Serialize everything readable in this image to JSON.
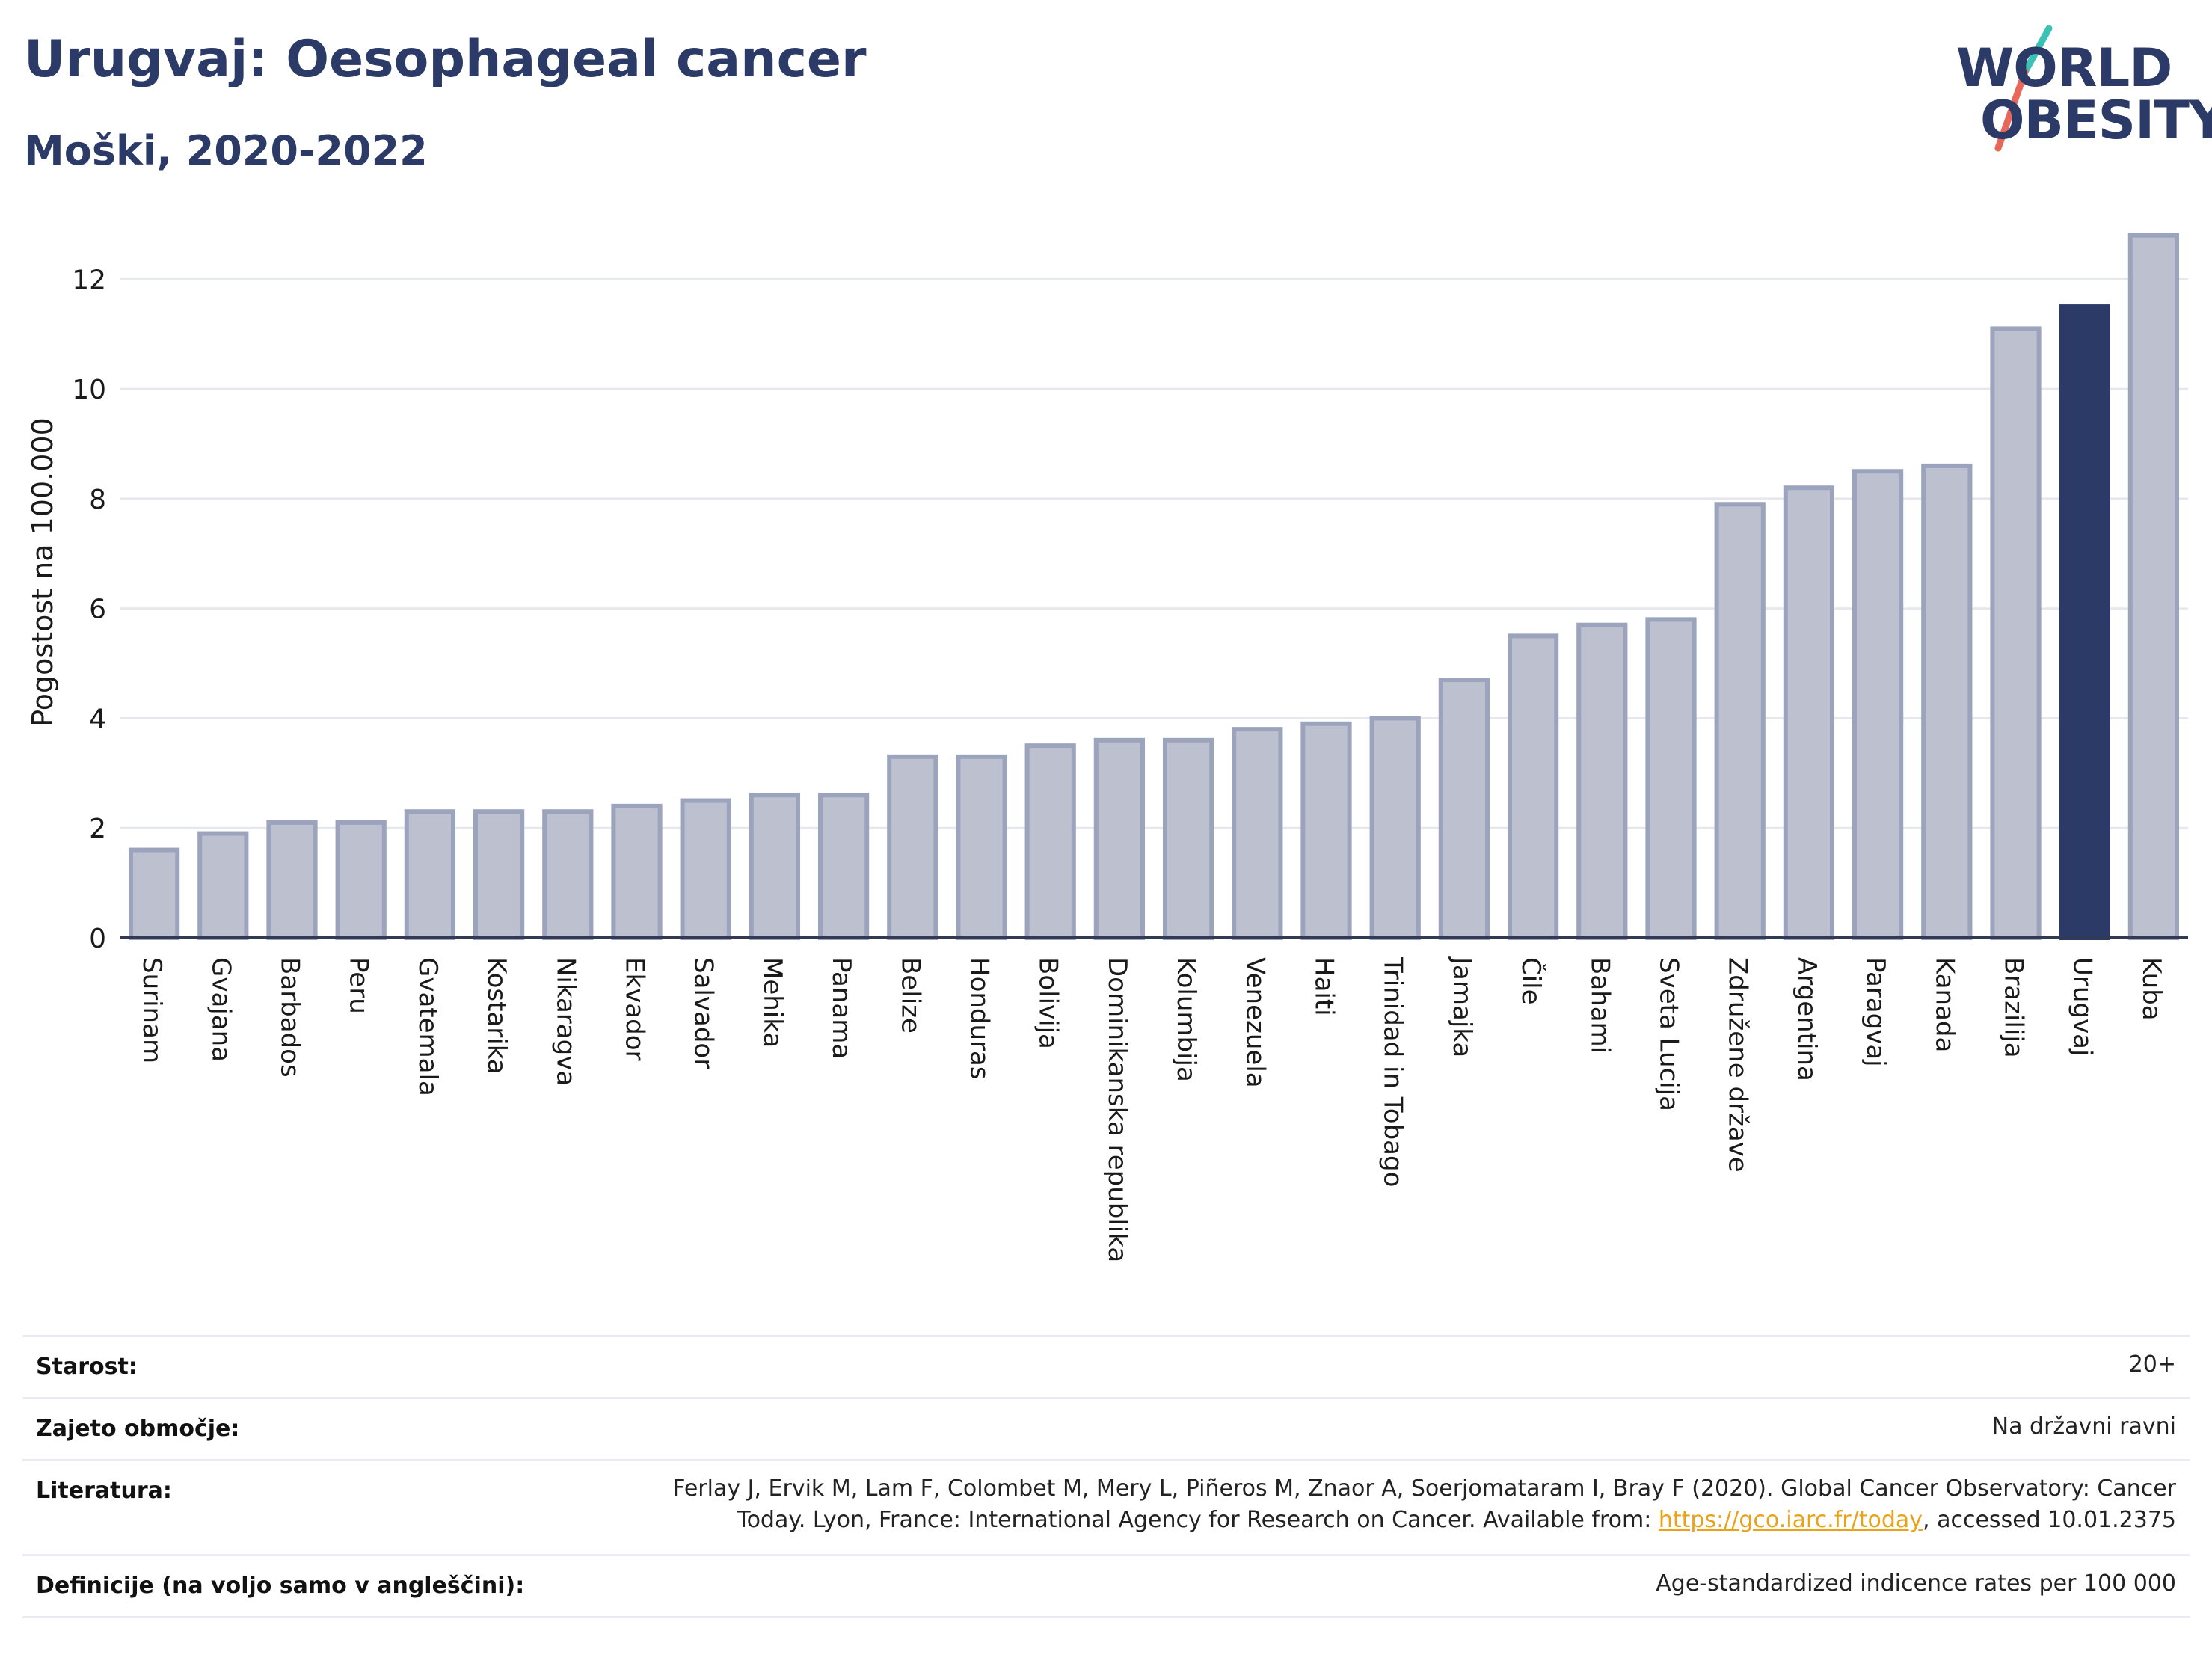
{
  "header": {
    "title": "Urugvaj: Oesophageal cancer",
    "subtitle": "Moški, 2020-2022"
  },
  "logo": {
    "line1": "WORLD",
    "line2": "OBESITY",
    "colors": {
      "text": "#2b3a67",
      "slash_top": "#3cc1b7",
      "slash_bottom": "#e8675a"
    }
  },
  "chart_data": {
    "type": "bar",
    "ylabel": "Pogostost na 100.000",
    "xlabel": "",
    "ylim": [
      0,
      13
    ],
    "yticks": [
      0,
      2,
      4,
      6,
      8,
      10,
      12
    ],
    "grid": true,
    "highlight": "Urugvaj",
    "colors": {
      "bar": "#bdc1cf",
      "bar_border": "#9ba3bd",
      "highlight": "#2b3a67",
      "grid": "#e6e8ee",
      "axis": "#333a55"
    },
    "categories": [
      "Surinam",
      "Gvajana",
      "Barbados",
      "Peru",
      "Gvatemala",
      "Kostarika",
      "Nikaragva",
      "Ekvador",
      "Salvador",
      "Mehika",
      "Panama",
      "Belize",
      "Honduras",
      "Bolivija",
      "Dominikanska republika",
      "Kolumbija",
      "Venezuela",
      "Haiti",
      "Trinidad in Tobago",
      "Jamajka",
      "Čile",
      "Bahami",
      "Sveta Lucija",
      "Združene države",
      "Argentina",
      "Paragvaj",
      "Kanada",
      "Brazilija",
      "Urugvaj",
      "Kuba"
    ],
    "values": [
      1.6,
      1.9,
      2.1,
      2.1,
      2.3,
      2.3,
      2.3,
      2.4,
      2.5,
      2.6,
      2.6,
      3.3,
      3.3,
      3.5,
      3.6,
      3.6,
      3.8,
      3.9,
      4.0,
      4.7,
      5.5,
      5.7,
      5.8,
      7.9,
      8.2,
      8.5,
      8.6,
      11.1,
      11.5,
      12.8
    ]
  },
  "info": [
    {
      "label": "Starost:",
      "value": "20+"
    },
    {
      "label": "Zajeto območje:",
      "value": "Na državni ravni"
    },
    {
      "label": "Literatura:",
      "value_line1": "Ferlay J, Ervik M, Lam F, Colombet M, Mery L, Piñeros M, Znaor A, Soerjomataram I, Bray F (2020). Global Cancer Observatory: Cancer",
      "value_line2_pre": "Today. Lyon, France: International Agency for Research on Cancer. Available from: ",
      "link": "https://gco.iarc.fr/today",
      "value_line2_post": ", accessed 10.01.2375"
    },
    {
      "label": "Definicije (na voljo samo v angleščini):",
      "value": "Age-standardized indicence rates per 100 000"
    }
  ]
}
